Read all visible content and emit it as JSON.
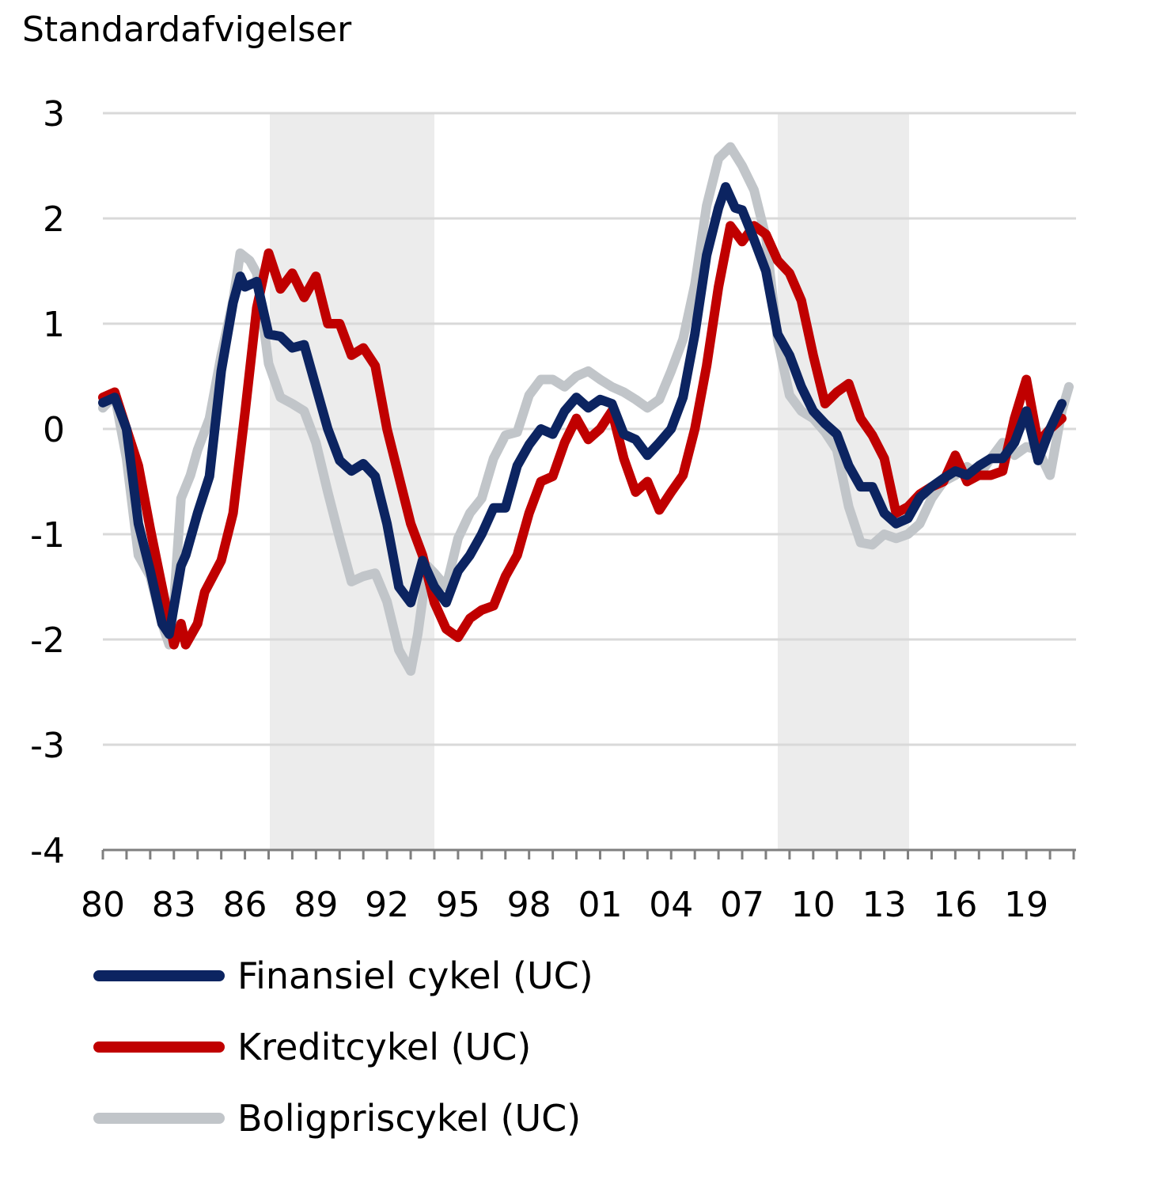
{
  "chart_data": {
    "type": "line",
    "title": "",
    "ylabel": "Standardafvigelser",
    "xlabel": "",
    "ylim": [
      -4,
      3
    ],
    "xlim": [
      1980,
      2021.1
    ],
    "yticks": [
      3,
      2,
      1,
      0,
      -1,
      -2,
      -3,
      -4
    ],
    "ytick_labels": [
      "3",
      "2",
      "1",
      "0",
      "-1",
      "-2",
      "-3",
      "-4"
    ],
    "xticks": [
      1980,
      1983,
      1986,
      1989,
      1992,
      1995,
      1998,
      2001,
      2004,
      2007,
      2010,
      2013,
      2016,
      2019
    ],
    "xtick_labels": [
      "80",
      "83",
      "86",
      "89",
      "92",
      "95",
      "98",
      "01",
      "04",
      "07",
      "10",
      "13",
      "16",
      "19"
    ],
    "grid": "horizontal",
    "legend_placement": "bottom",
    "shaded_periods": [
      [
        1987.05,
        1994.0
      ],
      [
        2008.5,
        2014.05
      ]
    ],
    "shade_color": "#ececec",
    "series": [
      {
        "name": "Finansiel cykel (UC)",
        "color": "#0c2461",
        "x": [
          1980,
          1980.5,
          1981,
          1981.5,
          1982,
          1982.5,
          1982.8,
          1983.3,
          1983.5,
          1984,
          1984.5,
          1985,
          1985.5,
          1985.8,
          1986,
          1986.5,
          1987,
          1987.5,
          1988,
          1988.5,
          1989,
          1989.5,
          1990,
          1990.5,
          1991,
          1991.5,
          1992,
          1992.5,
          1993,
          1993.5,
          1994,
          1994.5,
          1995,
          1995.5,
          1996,
          1996.5,
          1997,
          1997.5,
          1998,
          1998.5,
          1999,
          1999.5,
          2000,
          2000.5,
          2001,
          2001.5,
          2002,
          2002.5,
          2003,
          2003.5,
          2004,
          2004.5,
          2005,
          2005.5,
          2006,
          2006.3,
          2006.7,
          2007,
          2007.5,
          2008,
          2008.5,
          2009,
          2009.5,
          2010,
          2010.5,
          2011,
          2011.5,
          2012,
          2012.5,
          2013,
          2013.5,
          2014,
          2014.5,
          2015,
          2015.5,
          2016,
          2016.5,
          2017,
          2017.5,
          2018,
          2018.5,
          2019,
          2019.5,
          2020,
          2020.5
        ],
        "y": [
          0.25,
          0.3,
          0,
          -0.9,
          -1.35,
          -1.85,
          -1.95,
          -1.3,
          -1.2,
          -0.8,
          -0.45,
          0.55,
          1.2,
          1.45,
          1.35,
          1.4,
          0.9,
          0.88,
          0.77,
          0.8,
          0.4,
          0,
          -0.3,
          -0.4,
          -0.33,
          -0.45,
          -0.9,
          -1.5,
          -1.65,
          -1.25,
          -1.5,
          -1.65,
          -1.35,
          -1.2,
          -1.0,
          -0.75,
          -0.75,
          -0.35,
          -0.15,
          0,
          -0.05,
          0.17,
          0.3,
          0.2,
          0.28,
          0.24,
          -0.05,
          -0.1,
          -0.25,
          -0.13,
          0,
          0.3,
          0.9,
          1.65,
          2.1,
          2.3,
          2.1,
          2.08,
          1.8,
          1.5,
          0.9,
          0.7,
          0.4,
          0.17,
          0.05,
          -0.05,
          -0.35,
          -0.55,
          -0.55,
          -0.8,
          -0.9,
          -0.85,
          -0.65,
          -0.55,
          -0.47,
          -0.4,
          -0.44,
          -0.35,
          -0.28,
          -0.28,
          -0.13,
          0.17,
          -0.3,
          0,
          0.24
        ]
      },
      {
        "name": "Kreditcykel (UC)",
        "color": "#c00000",
        "x": [
          1980,
          1980.5,
          1981,
          1981.5,
          1982,
          1982.5,
          1983,
          1983.3,
          1983.5,
          1984,
          1984.3,
          1985,
          1985.5,
          1986,
          1986.5,
          1987,
          1987.5,
          1988,
          1988.5,
          1989,
          1989.5,
          1990,
          1990.5,
          1991,
          1991.5,
          1992,
          1992.5,
          1993,
          1993.5,
          1994,
          1994.5,
          1995,
          1995.5,
          1996,
          1996.5,
          1997,
          1997.5,
          1998,
          1998.5,
          1999,
          1999.5,
          2000,
          2000.5,
          2001,
          2001.5,
          2002,
          2002.5,
          2003,
          2003.5,
          2004,
          2004.5,
          2005,
          2005.5,
          2006,
          2006.5,
          2007,
          2007.5,
          2008,
          2008.5,
          2009,
          2009.5,
          2010,
          2010.5,
          2011,
          2011.5,
          2012,
          2012.5,
          2013,
          2013.5,
          2014,
          2014.5,
          2015,
          2015.5,
          2016,
          2016.5,
          2017,
          2017.5,
          2018,
          2018.5,
          2019,
          2019.5,
          2020,
          2020.5
        ],
        "y": [
          0.3,
          0.35,
          0,
          -0.35,
          -0.95,
          -1.5,
          -2.05,
          -1.85,
          -2.05,
          -1.85,
          -1.55,
          -1.25,
          -0.8,
          0.15,
          1.15,
          1.67,
          1.33,
          1.48,
          1.25,
          1.45,
          1.0,
          1.0,
          0.7,
          0.77,
          0.6,
          0,
          -0.45,
          -0.9,
          -1.2,
          -1.65,
          -1.9,
          -1.98,
          -1.8,
          -1.72,
          -1.68,
          -1.4,
          -1.2,
          -0.8,
          -0.5,
          -0.45,
          -0.13,
          0.1,
          -0.1,
          0,
          0.17,
          -0.28,
          -0.6,
          -0.5,
          -0.77,
          -0.6,
          -0.44,
          0,
          0.6,
          1.35,
          1.93,
          1.78,
          1.93,
          1.85,
          1.6,
          1.48,
          1.22,
          0.7,
          0.24,
          0.35,
          0.43,
          0.1,
          -0.06,
          -0.28,
          -0.8,
          -0.74,
          -0.62,
          -0.55,
          -0.5,
          -0.25,
          -0.5,
          -0.44,
          -0.44,
          -0.4,
          0.1,
          0.47,
          -0.13,
          0,
          0.1
        ]
      },
      {
        "name": "Boligpriscykel (UC)",
        "color": "#c1c5c9",
        "x": [
          1980,
          1980.5,
          1981,
          1981.5,
          1982,
          1982.5,
          1982.8,
          1983,
          1983.3,
          1983.7,
          1984,
          1984.5,
          1985,
          1985.5,
          1985.8,
          1986.2,
          1986.5,
          1987,
          1987.5,
          1988,
          1988.5,
          1989,
          1989.5,
          1990,
          1990.5,
          1991,
          1991.5,
          1992,
          1992.5,
          1993,
          1993.3,
          1993.7,
          1994,
          1994.5,
          1995,
          1995.5,
          1996,
          1996.5,
          1997,
          1997.5,
          1998,
          1998.5,
          1999,
          1999.5,
          2000,
          2000.5,
          2001,
          2001.5,
          2002,
          2002.5,
          2003,
          2003.5,
          2004,
          2004.5,
          2005,
          2005.5,
          2006,
          2006.5,
          2007,
          2007.5,
          2008,
          2008.5,
          2009,
          2009.5,
          2010,
          2010.5,
          2011,
          2011.5,
          2012,
          2012.5,
          2013,
          2013.5,
          2014,
          2014.5,
          2015,
          2015.5,
          2016,
          2016.5,
          2017,
          2017.5,
          2018,
          2018.5,
          2019,
          2019.5,
          2020,
          2020.5,
          2020.8
        ],
        "y": [
          0.2,
          0.32,
          -0.28,
          -1.2,
          -1.4,
          -1.85,
          -2.05,
          -1.65,
          -0.66,
          -0.44,
          -0.2,
          0.1,
          0.7,
          1.22,
          1.67,
          1.6,
          1.48,
          0.62,
          0.3,
          0.24,
          0.17,
          -0.13,
          -0.6,
          -1.04,
          -1.45,
          -1.4,
          -1.37,
          -1.64,
          -2.1,
          -2.3,
          -1.95,
          -1.3,
          -1.37,
          -1.5,
          -1.04,
          -0.8,
          -0.66,
          -0.28,
          -0.06,
          -0.03,
          0.32,
          0.47,
          0.47,
          0.4,
          0.5,
          0.55,
          0.47,
          0.4,
          0.35,
          0.28,
          0.2,
          0.28,
          0.55,
          0.85,
          1.37,
          2.12,
          2.57,
          2.68,
          2.5,
          2.27,
          1.82,
          0.85,
          0.32,
          0.17,
          0.1,
          -0.03,
          -0.2,
          -0.74,
          -1.08,
          -1.1,
          -1.0,
          -1.04,
          -1.0,
          -0.9,
          -0.66,
          -0.5,
          -0.44,
          -0.36,
          -0.44,
          -0.28,
          -0.13,
          -0.25,
          -0.17,
          -0.2,
          -0.44,
          0.17,
          0.4
        ]
      }
    ]
  }
}
